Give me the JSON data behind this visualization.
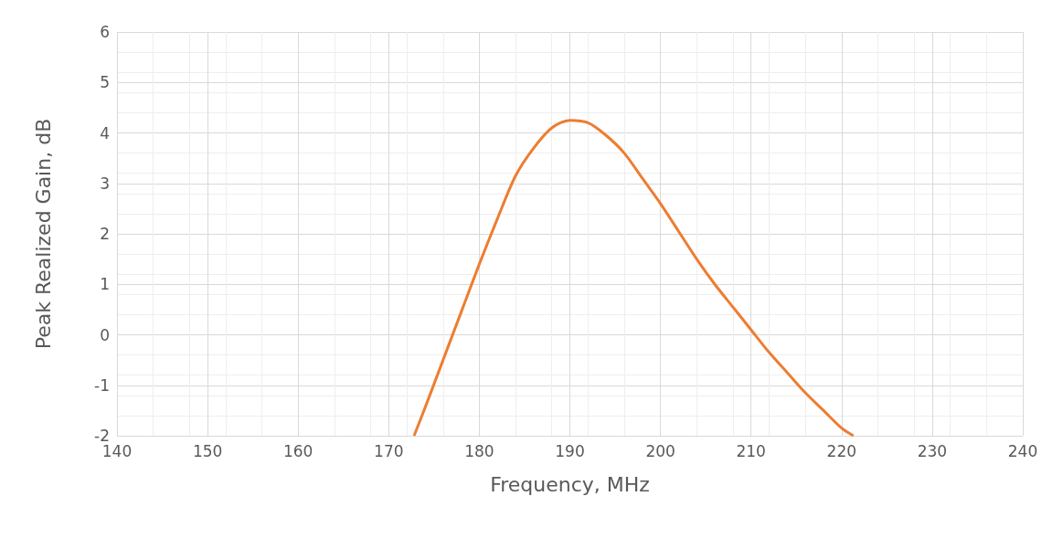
{
  "chart_data": {
    "type": "line",
    "xlabel": "Frequency, MHz",
    "ylabel": "Peak Realized Gain, dB",
    "series": [
      {
        "color": "#ed7d31",
        "x": [
          172.8,
          174,
          176,
          178,
          180,
          182,
          184,
          186,
          188,
          190,
          192,
          194,
          196,
          198,
          200,
          202,
          204,
          206,
          208,
          210,
          212,
          214,
          216,
          218,
          220,
          221.3
        ],
        "values": [
          -2,
          -1.45,
          -0.5,
          0.45,
          1.4,
          2.3,
          3.15,
          3.7,
          4.1,
          4.25,
          4.2,
          3.95,
          3.6,
          3.1,
          2.6,
          2.05,
          1.5,
          1.0,
          0.55,
          0.1,
          -0.35,
          -0.75,
          -1.15,
          -1.5,
          -1.85,
          -2
        ]
      }
    ],
    "xlim": [
      140,
      240
    ],
    "xticks": [
      140,
      150,
      160,
      170,
      180,
      190,
      200,
      210,
      220,
      230,
      240
    ],
    "ylim": [
      -2,
      6
    ],
    "yticks": [
      -2,
      -1,
      0,
      1,
      2,
      3,
      4,
      5,
      6
    ],
    "grid": true,
    "marker": "none",
    "line_style": "solid"
  }
}
